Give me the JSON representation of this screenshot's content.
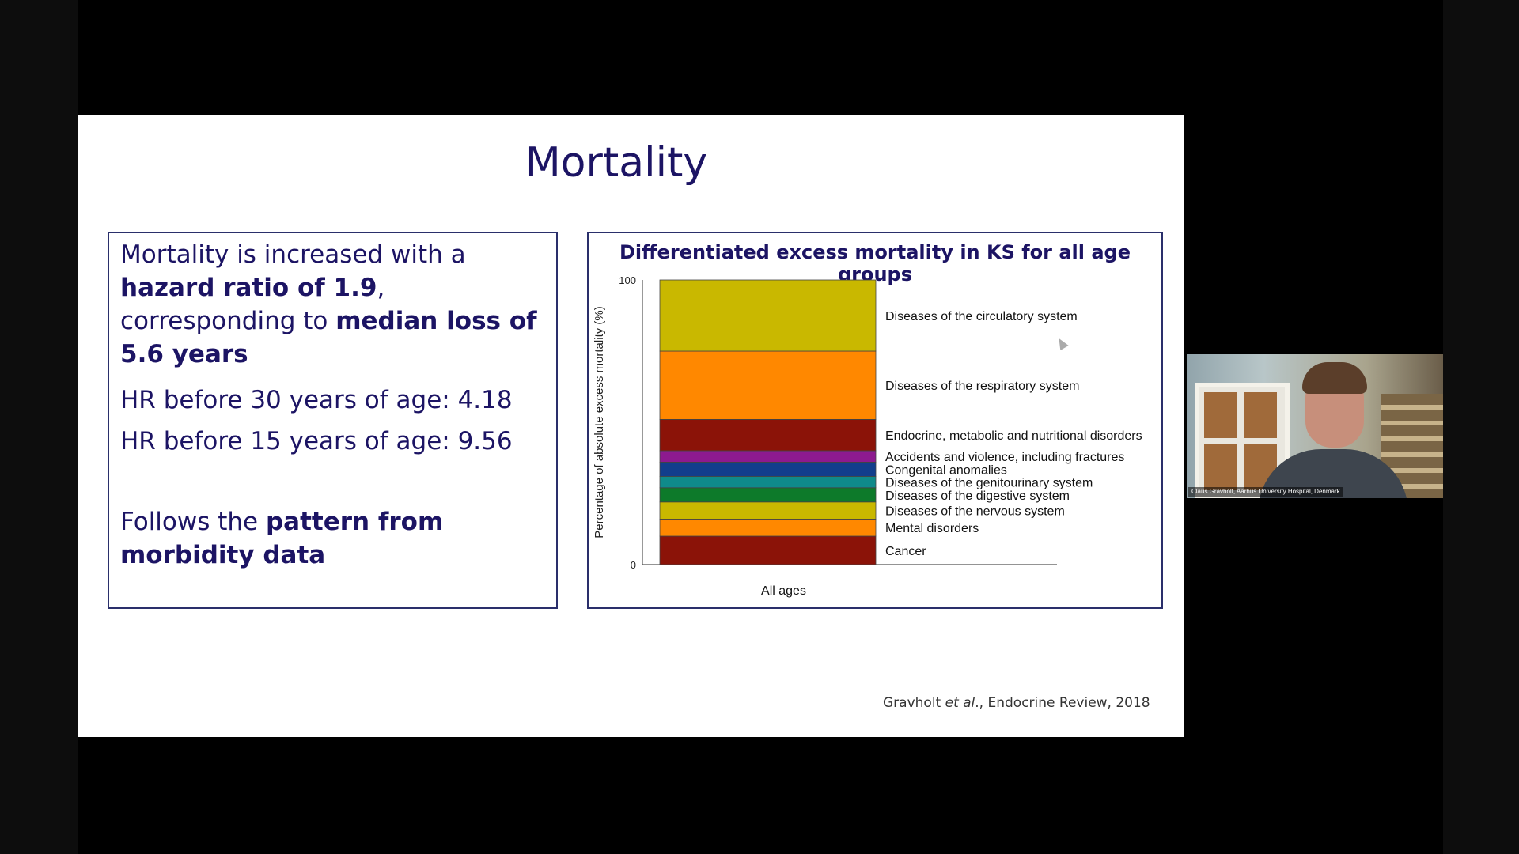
{
  "slide": {
    "title": "Mortality",
    "left_box": {
      "p1_a": "Mortality is increased with a ",
      "p1_b": "hazard ratio of 1.9",
      "p1_c": ", corresponding to ",
      "p1_d": "median loss of 5.6 years",
      "hr30": "HR before 30 years of age: 4.18",
      "hr15": "HR before 15 years of age: 9.56",
      "p4_a": "Follows the ",
      "p4_b": "pattern from morbidity data"
    },
    "citation_a": "Gravholt ",
    "citation_b": "et al",
    "citation_c": "., Endocrine Review, 2018"
  },
  "video": {
    "participant_label": "Claus Gravholt, Aarhus University Hospital, Denmark"
  },
  "chart_data": {
    "type": "bar",
    "title": "Differentiated excess mortality in KS for all age groups",
    "ylabel": "Percentage of absolute excess mortality (%)",
    "xlabel": "",
    "categories": [
      "All ages"
    ],
    "ylim": [
      0,
      100
    ],
    "yticks": [
      "0",
      "100"
    ],
    "stacked": true,
    "series": [
      {
        "name": "Cancer",
        "values": [
          10
        ],
        "color": "#8b1308"
      },
      {
        "name": "Mental disorders",
        "values": [
          6
        ],
        "color": "#ff8800"
      },
      {
        "name": "Diseases of the nervous system",
        "values": [
          6
        ],
        "color": "#c9b800"
      },
      {
        "name": "Diseases of the digestive system",
        "values": [
          5
        ],
        "color": "#0d7a2a"
      },
      {
        "name": "Diseases of the genitourinary system",
        "values": [
          4
        ],
        "color": "#0f8a8a"
      },
      {
        "name": "Congenital anomalies",
        "values": [
          5
        ],
        "color": "#123e8c"
      },
      {
        "name": "Accidents and violence, including fractures",
        "values": [
          4
        ],
        "color": "#8d1a8f"
      },
      {
        "name": "Endocrine, metabolic and nutritional disorders",
        "values": [
          11
        ],
        "color": "#8b1308"
      },
      {
        "name": "Diseases of the respiratory system",
        "values": [
          24
        ],
        "color": "#ff8800"
      },
      {
        "name": "Diseases of the circulatory system",
        "values": [
          25
        ],
        "color": "#c9b800"
      }
    ]
  }
}
